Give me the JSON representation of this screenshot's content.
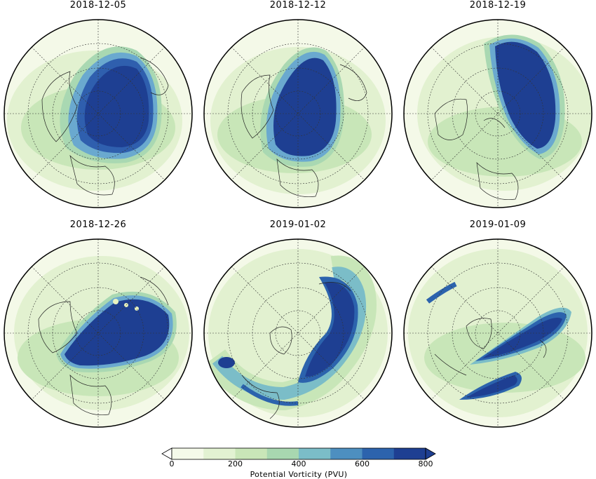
{
  "panels": [
    {
      "date": "2018-12-05"
    },
    {
      "date": "2018-12-12"
    },
    {
      "date": "2018-12-19"
    },
    {
      "date": "2018-12-26"
    },
    {
      "date": "2019-01-02"
    },
    {
      "date": "2019-01-09"
    }
  ],
  "colorbar": {
    "label": "Potential Vorticity (PVU)",
    "ticks": [
      "0",
      "200",
      "400",
      "600",
      "800"
    ],
    "min": 0,
    "max": 800,
    "colors": [
      "#f5faea",
      "#e2f2d2",
      "#c9e6b8",
      "#a8d7b0",
      "#7bbdc8",
      "#4d8fc0",
      "#2c63ad",
      "#1e3f92"
    ]
  }
}
